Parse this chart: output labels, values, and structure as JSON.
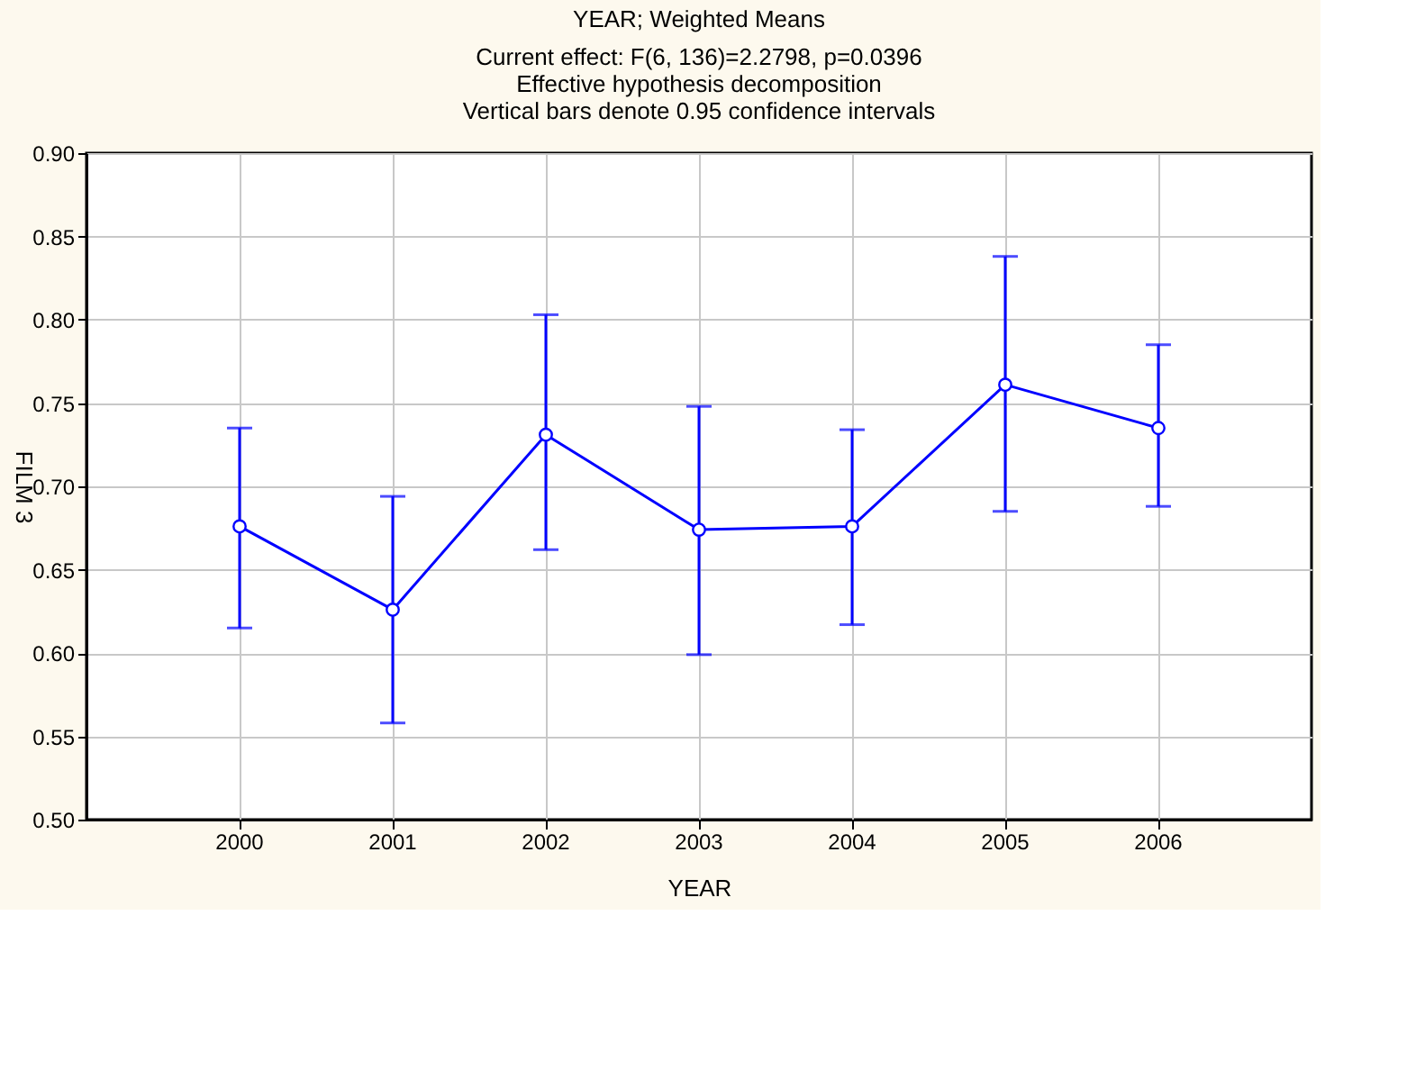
{
  "chart_data": {
    "type": "line",
    "title": "YEAR; Weighted Means",
    "subtitle": "Current effect: F(6, 136)=2.2798, p=0.0396\nEffective hypothesis decomposition\nVertical bars denote 0.95 confidence intervals",
    "xlabel": "YEAR",
    "ylabel": "FILM 3",
    "categories": [
      "2000",
      "2001",
      "2002",
      "2003",
      "2004",
      "2005",
      "2006"
    ],
    "series": [
      {
        "color": "#0000ff",
        "values": [
          0.676,
          0.626,
          0.731,
          0.674,
          0.676,
          0.761,
          0.735
        ],
        "errors": [
          [
            0.615,
            0.735
          ],
          [
            0.558,
            0.694
          ],
          [
            0.662,
            0.803
          ],
          [
            0.599,
            0.748
          ],
          [
            0.617,
            0.734
          ],
          [
            0.685,
            0.838
          ],
          [
            0.688,
            0.785
          ]
        ]
      }
    ],
    "ylim": [
      0.5,
      0.9
    ],
    "yticks": [
      {
        "value": 0.5,
        "label": "0.50"
      },
      0.55,
      {
        "value": 0.6,
        "label": "0.60"
      },
      0.65,
      {
        "value": 0.7,
        "label": "0.70"
      },
      0.75,
      {
        "value": 0.8,
        "label": "0.80"
      },
      0.85,
      {
        "value": 0.9,
        "label": "0.90"
      }
    ],
    "grid": true,
    "marker": "circle",
    "line_style": "solid"
  }
}
